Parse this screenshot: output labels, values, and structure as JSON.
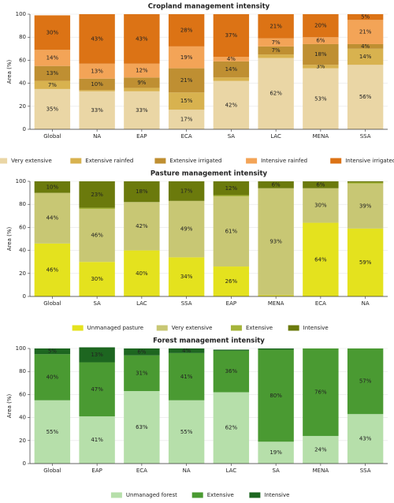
{
  "chart_data": [
    {
      "type": "bar",
      "stacked": true,
      "title": "Cropland management intensity",
      "y_label": "Area (%)",
      "categories": [
        "Global",
        "NA",
        "EAP",
        "ECA",
        "SA",
        "LAC",
        "MENA",
        "SSA"
      ],
      "ylim": [
        0,
        100
      ],
      "yticks": [
        0,
        20,
        40,
        60,
        80,
        100
      ],
      "grid": true,
      "legend": "bottom",
      "series": [
        {
          "name": "Very extensive",
          "color": "#ead6a5",
          "values": [
            35,
            33,
            33,
            17,
            42,
            62,
            53,
            56
          ],
          "value_labels": [
            "35%",
            "33%",
            "33%",
            "17%",
            "42%",
            "62%",
            "53%",
            "56%"
          ]
        },
        {
          "name": "Extensive rainfed",
          "color": "#d8b24f",
          "values": [
            7,
            1,
            3,
            15,
            3,
            3,
            3,
            14
          ],
          "value_labels": [
            "7%",
            null,
            null,
            "15%",
            null,
            null,
            "3%",
            "14%"
          ]
        },
        {
          "name": "Extensive irrigated",
          "color": "#bf8f32",
          "values": [
            13,
            10,
            9,
            21,
            14,
            7,
            18,
            4
          ],
          "value_labels": [
            "13%",
            "10%",
            "9%",
            "21%",
            "14%",
            "7%",
            "18%",
            "4%"
          ]
        },
        {
          "name": "Intensive rainfed",
          "color": "#f3a457",
          "values": [
            14,
            13,
            12,
            19,
            4,
            7,
            6,
            21
          ],
          "value_labels": [
            "14%",
            "13%",
            "12%",
            "19%",
            "4%",
            "7%",
            "6%",
            "21%"
          ]
        },
        {
          "name": "Intensive irrigated",
          "color": "#dc7315",
          "values": [
            30,
            43,
            43,
            28,
            37,
            21,
            20,
            5
          ],
          "value_labels": [
            "30%",
            "43%",
            "43%",
            "28%",
            "37%",
            "21%",
            "20%",
            "5%"
          ]
        }
      ]
    },
    {
      "type": "bar",
      "stacked": true,
      "title": "Pasture management intensity",
      "y_label": "Area (%)",
      "categories": [
        "Global",
        "SA",
        "LAC",
        "SSA",
        "EAP",
        "MENA",
        "ECA",
        "NA"
      ],
      "ylim": [
        0,
        100
      ],
      "yticks": [
        0,
        20,
        40,
        60,
        80,
        100
      ],
      "grid": true,
      "legend": "bottom",
      "series": [
        {
          "name": "Unmanaged pasture",
          "color": "#e4e21e",
          "values": [
            46,
            30,
            40,
            34,
            26,
            1,
            64,
            59
          ],
          "value_labels": [
            "46%",
            "30%",
            "40%",
            "34%",
            "26%",
            null,
            "64%",
            "59%"
          ]
        },
        {
          "name": "Very extensive",
          "color": "#c8c774",
          "values": [
            44,
            46,
            42,
            49,
            61,
            93,
            30,
            39
          ],
          "value_labels": [
            "44%",
            "46%",
            "42%",
            "49%",
            "61%",
            "93%",
            "30%",
            "39%"
          ]
        },
        {
          "name": "Extensive",
          "color": "#a5b43a",
          "values": [
            0,
            1,
            0,
            0,
            1,
            0,
            0,
            1
          ],
          "value_labels": [
            null,
            null,
            null,
            null,
            null,
            null,
            null,
            null
          ]
        },
        {
          "name": "Intensive",
          "color": "#6b7a0c",
          "values": [
            10,
            23,
            18,
            17,
            12,
            6,
            6,
            1
          ],
          "value_labels": [
            "10%",
            "23%",
            "18%",
            "17%",
            "12%",
            "6%",
            "6%",
            null
          ]
        }
      ]
    },
    {
      "type": "bar",
      "stacked": true,
      "title": "Forest management intensity",
      "y_label": "Area (%)",
      "categories": [
        "Global",
        "EAP",
        "ECA",
        "NA",
        "LAC",
        "SA",
        "MENA",
        "SSA"
      ],
      "ylim": [
        0,
        100
      ],
      "yticks": [
        0,
        20,
        40,
        60,
        80,
        100
      ],
      "grid": true,
      "legend": "bottom",
      "series": [
        {
          "name": "Unmanaged forest",
          "color": "#b6dfaa",
          "values": [
            55,
            41,
            63,
            55,
            62,
            19,
            24,
            43
          ],
          "value_labels": [
            "55%",
            "41%",
            "63%",
            "55%",
            "62%",
            "19%",
            "24%",
            "43%"
          ]
        },
        {
          "name": "Extensive",
          "color": "#4a9a32",
          "values": [
            40,
            47,
            31,
            41,
            36,
            80,
            76,
            57
          ],
          "value_labels": [
            "40%",
            "47%",
            "31%",
            "41%",
            "36%",
            "80%",
            "76%",
            "57%"
          ]
        },
        {
          "name": "Intensive",
          "color": "#1d6620",
          "values": [
            5,
            13,
            6,
            4,
            1,
            1,
            0,
            0
          ],
          "value_labels": [
            "5%",
            "13%",
            "6%",
            "4%",
            null,
            null,
            null,
            null
          ]
        }
      ]
    }
  ]
}
